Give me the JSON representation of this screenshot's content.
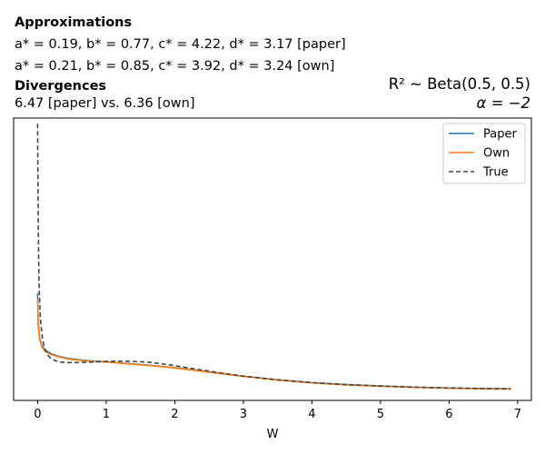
{
  "header": {
    "approx_title": "Approximations",
    "paper_line": "a* = 0.19, b* = 0.77, c* = 4.22, d* = 3.17 [paper]",
    "own_line": "a* = 0.21, b* = 0.85, c* = 3.92, d* = 3.24 [own]",
    "div_title": "Divergences",
    "div_line": "6.47 [paper] vs. 6.36 [own]",
    "prior_line": "R² ~ Beta(0.5, 0.5)",
    "alpha_line": "α = −2"
  },
  "chart_data": {
    "type": "line",
    "xlabel": "W",
    "ylabel": "",
    "xlim": [
      -0.35,
      7.2
    ],
    "ylim": [
      0,
      1
    ],
    "x_ticks": [
      0,
      1,
      2,
      3,
      4,
      5,
      6,
      7
    ],
    "y_ticks": [],
    "grid": false,
    "legend_position": "top-right",
    "colors": {
      "Paper": "#1f77b4",
      "Own": "#ff7f0e",
      "True": "#444444"
    },
    "series": [
      {
        "name": "Paper",
        "x": [
          0.0,
          0.01,
          0.03,
          0.06,
          0.1,
          0.15,
          0.2,
          0.3,
          0.4,
          0.5,
          0.7,
          1.0,
          1.3,
          1.6,
          2.0,
          2.5,
          3.0,
          3.5,
          4.0,
          4.5,
          5.0,
          5.5,
          6.0,
          6.5,
          6.9
        ],
        "y": [
          0.38,
          0.27,
          0.22,
          0.195,
          0.18,
          0.172,
          0.165,
          0.157,
          0.151,
          0.147,
          0.141,
          0.137,
          0.131,
          0.125,
          0.116,
          0.101,
          0.086,
          0.073,
          0.063,
          0.056,
          0.051,
          0.047,
          0.044,
          0.042,
          0.041
        ]
      },
      {
        "name": "Own",
        "x": [
          0.0,
          0.01,
          0.03,
          0.06,
          0.1,
          0.15,
          0.2,
          0.3,
          0.4,
          0.5,
          0.7,
          1.0,
          1.3,
          1.6,
          2.0,
          2.5,
          3.0,
          3.5,
          4.0,
          4.5,
          5.0,
          5.5,
          6.0,
          6.5,
          6.9
        ],
        "y": [
          0.36,
          0.26,
          0.215,
          0.19,
          0.176,
          0.168,
          0.162,
          0.155,
          0.149,
          0.145,
          0.14,
          0.136,
          0.13,
          0.124,
          0.115,
          0.1,
          0.085,
          0.072,
          0.062,
          0.055,
          0.05,
          0.046,
          0.043,
          0.041,
          0.04
        ]
      },
      {
        "name": "True",
        "x": [
          0.0,
          0.005,
          0.01,
          0.02,
          0.04,
          0.07,
          0.1,
          0.15,
          0.2,
          0.3,
          0.4,
          0.6,
          0.8,
          1.0,
          1.3,
          1.6,
          1.9,
          2.2,
          2.6,
          3.0,
          3.5,
          4.0,
          4.5,
          5.0,
          5.5,
          6.0,
          6.5,
          6.9
        ],
        "y": [
          0.98,
          0.78,
          0.6,
          0.42,
          0.29,
          0.22,
          0.185,
          0.16,
          0.147,
          0.137,
          0.134,
          0.134,
          0.136,
          0.138,
          0.139,
          0.136,
          0.127,
          0.115,
          0.1,
          0.086,
          0.073,
          0.063,
          0.056,
          0.051,
          0.047,
          0.044,
          0.042,
          0.041
        ]
      }
    ]
  }
}
